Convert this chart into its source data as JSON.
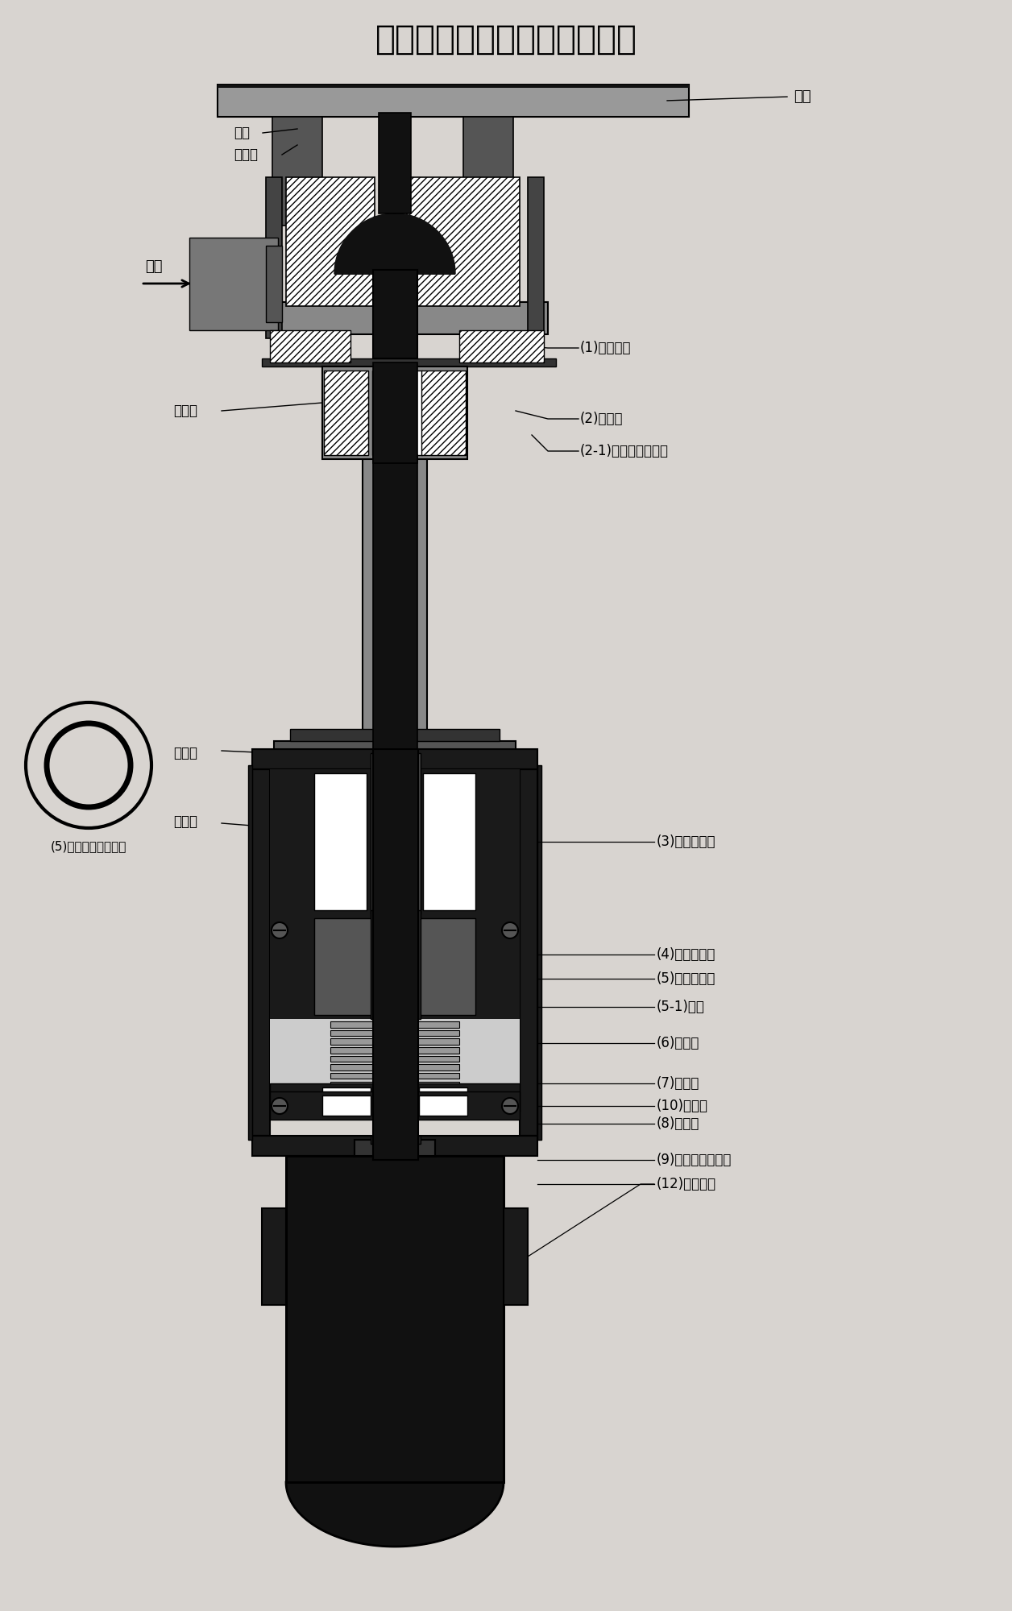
{
  "title": "全封闭磁力牵引蒸汽电动阀门",
  "bg_color": "#d8d4d0",
  "labels": {
    "fa_lan": "法兰",
    "han_jie1": "焊接",
    "han_jie2": "或焊接",
    "jin_kou": "进口",
    "han_jie3": "或焊接",
    "han_jie4": "或焊接",
    "han_jie5": "或焊接",
    "label1": "(1)阀门主体",
    "label2": "(2)密封头",
    "label21": "(2-1)轴缝封闭缸导管",
    "label3": "(3)轴缝封闭缸",
    "label4": "(4)磁铁内芯子",
    "label5": "(5)磁铁外套环",
    "label51": "(5-1)导轨",
    "label6": "(6)运行缸",
    "label7": "(7)内轴承",
    "label8": "(8)方螺轴",
    "label9": "(9)磁力牵引器外罩",
    "label10": "(10)外轴承",
    "label12": "(12)微型电机",
    "label5_side": "(5)磁铁外套环俯视图"
  },
  "colors": {
    "dark": "#111111",
    "mid_dark": "#2a2a2a",
    "gray_dark": "#444444",
    "gray_med": "#777777",
    "gray_light": "#aaaaaa",
    "gray_lighter": "#cccccc",
    "white": "#ffffff",
    "hatch_bg": "#ffffff",
    "bg": "#d8d4d0"
  }
}
